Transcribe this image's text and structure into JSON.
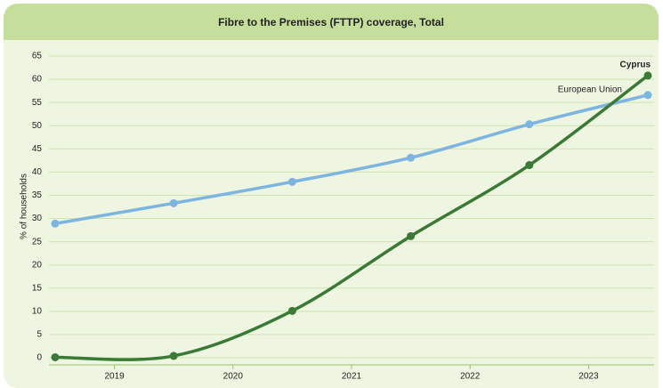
{
  "chart_data": {
    "type": "line",
    "title": "Fibre to the Premises (FTTP) coverage, Total",
    "ylabel": "% of households",
    "x": [
      2018.5,
      2019.5,
      2020.5,
      2021.5,
      2022.5,
      2023.5
    ],
    "xlim": [
      2018.5,
      2023.5
    ],
    "xticks": [
      2019,
      2020,
      2021,
      2022,
      2023
    ],
    "ylim": [
      0,
      65
    ],
    "yticks": [
      0,
      5,
      10,
      15,
      20,
      25,
      30,
      35,
      40,
      45,
      50,
      55,
      60,
      65
    ],
    "grid": true,
    "series": [
      {
        "name": "European Union",
        "color": "#7db4e0",
        "values": [
          28.9,
          33.3,
          37.9,
          43.1,
          50.3,
          56.6
        ]
      },
      {
        "name": "Cyprus",
        "color": "#3b7a36",
        "values": [
          0.1,
          0.4,
          10.1,
          26.2,
          41.5,
          60.8
        ]
      }
    ]
  }
}
